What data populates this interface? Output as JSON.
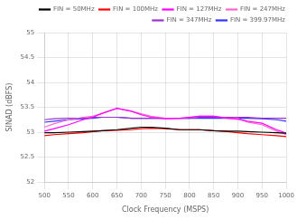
{
  "chart_data": {
    "type": "line",
    "xlabel": "Clock Frequency (MSPS)",
    "ylabel": "SINAD (dBFS)",
    "xlim": [
      500,
      1000
    ],
    "ylim": [
      52,
      55
    ],
    "xticks": [
      500,
      550,
      600,
      650,
      700,
      750,
      800,
      850,
      900,
      950,
      1000
    ],
    "yticks": [
      52,
      52.5,
      53,
      53.5,
      54,
      54.5,
      55
    ],
    "grid": true,
    "legend": "upper right",
    "x": [
      500,
      520,
      550,
      580,
      600,
      620,
      650,
      680,
      700,
      720,
      750,
      780,
      800,
      820,
      850,
      880,
      900,
      920,
      950,
      980,
      1000
    ],
    "series": [
      {
        "name": "FIN = 50MHz",
        "color": "#000000",
        "values": [
          52.99,
          52.99,
          53.0,
          53.01,
          53.02,
          53.03,
          53.05,
          53.08,
          53.1,
          53.1,
          53.08,
          53.05,
          53.05,
          53.05,
          53.03,
          53.02,
          53.02,
          53.01,
          53.0,
          52.99,
          52.98
        ]
      },
      {
        "name": "FIN = 100MHz",
        "color": "#ff0000",
        "values": [
          52.93,
          52.95,
          52.97,
          52.99,
          53.01,
          53.03,
          53.04,
          53.05,
          53.07,
          53.08,
          53.07,
          53.05,
          53.05,
          53.05,
          53.03,
          53.01,
          52.99,
          52.97,
          52.95,
          52.93,
          52.91
        ]
      },
      {
        "name": "FIN = 127MHz",
        "color": "#ff00ff",
        "values": [
          53.02,
          53.07,
          53.15,
          53.25,
          53.3,
          53.38,
          53.48,
          53.42,
          53.35,
          53.3,
          53.27,
          53.28,
          53.3,
          53.32,
          53.32,
          53.28,
          53.26,
          53.22,
          53.18,
          53.05,
          52.98
        ]
      },
      {
        "name": "FIN = 247MHz",
        "color": "#ff66cc",
        "values": [
          53.1,
          53.17,
          53.25,
          53.3,
          53.32,
          53.38,
          53.48,
          53.42,
          53.37,
          53.32,
          53.28,
          53.28,
          53.3,
          53.32,
          53.32,
          53.28,
          53.28,
          53.2,
          53.15,
          53.02,
          52.95
        ]
      },
      {
        "name": "FIN = 347MHz",
        "color": "#9933cc",
        "values": [
          53.25,
          53.27,
          53.28,
          53.28,
          53.3,
          53.3,
          53.3,
          53.28,
          53.28,
          53.28,
          53.28,
          53.28,
          53.28,
          53.3,
          53.3,
          53.3,
          53.3,
          53.3,
          53.28,
          53.28,
          53.28
        ]
      },
      {
        "name": "FIN = 399.97MHz",
        "color": "#3333ff",
        "values": [
          53.2,
          53.22,
          53.25,
          53.27,
          53.28,
          53.3,
          53.3,
          53.28,
          53.28,
          53.28,
          53.28,
          53.28,
          53.28,
          53.28,
          53.28,
          53.28,
          53.28,
          53.28,
          53.27,
          53.25,
          53.22
        ]
      }
    ]
  }
}
